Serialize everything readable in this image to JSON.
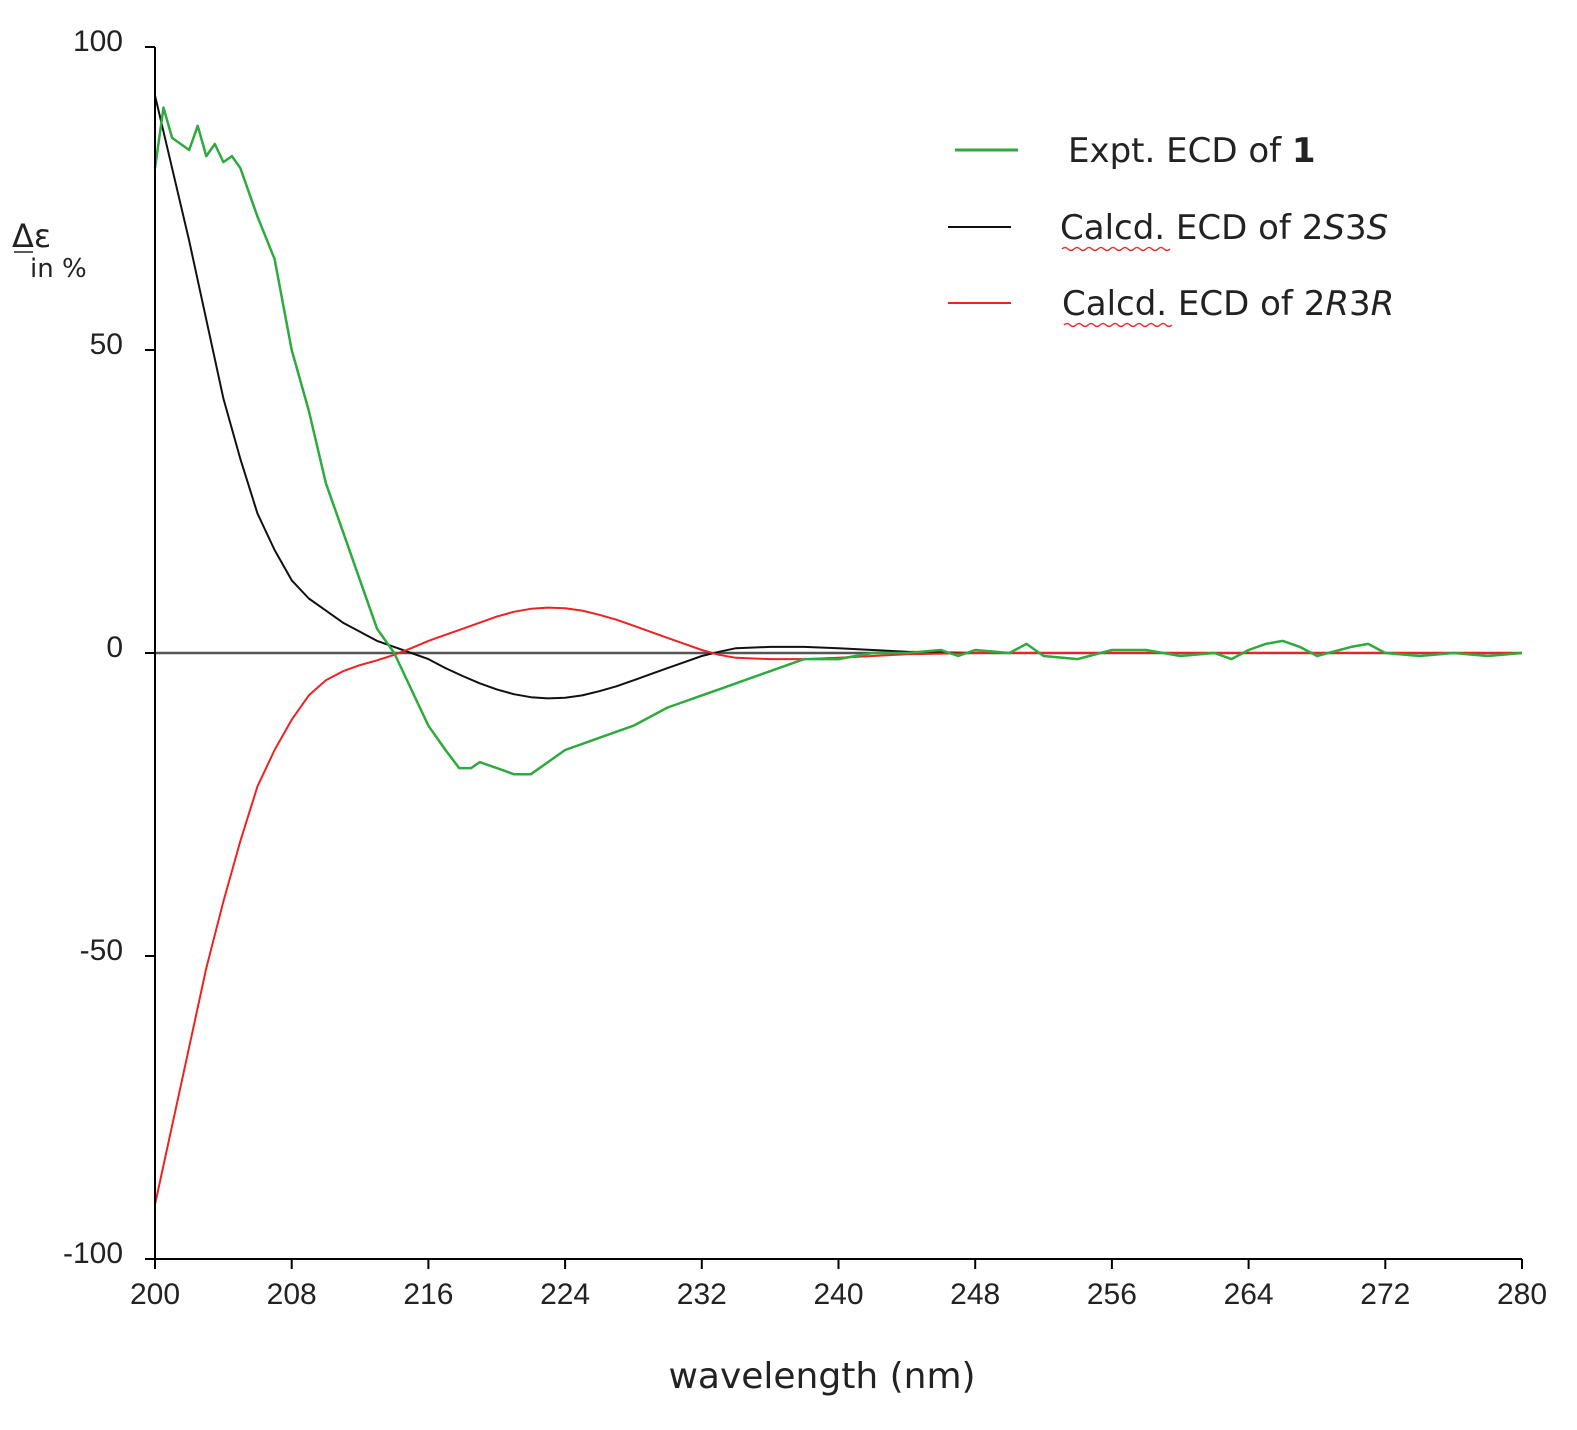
{
  "chart_data": {
    "type": "line",
    "title": "",
    "xlabel": "wavelength (nm)",
    "ylabel_main": "Δε",
    "ylabel_sub": "in %",
    "xlim": [
      200,
      280
    ],
    "ylim": [
      -100,
      100
    ],
    "x_ticks": [
      200,
      208,
      216,
      224,
      232,
      240,
      248,
      256,
      264,
      272,
      280
    ],
    "y_ticks": [
      100,
      50,
      0,
      -50,
      -100
    ],
    "y_tick_labels": [
      "100",
      "50",
      "0",
      "-50",
      "-100"
    ],
    "legend_position": "top-right",
    "series": [
      {
        "name": "Expt. ECD of 1",
        "label_prefix": "Expt. ECD of ",
        "label_bold": "1",
        "color": "#2eaa3e",
        "x": [
          200,
          200.5,
          201,
          202,
          202.5,
          203,
          203.5,
          204,
          204.5,
          205,
          206,
          207,
          208,
          209,
          210,
          211,
          212,
          213,
          214,
          215,
          216,
          217,
          217.8,
          218.5,
          219,
          220,
          221,
          222,
          223,
          224,
          225,
          226,
          228,
          230,
          231,
          232,
          233,
          234,
          236,
          238,
          240,
          241,
          242,
          244,
          246,
          247,
          248,
          250,
          251,
          252,
          254,
          256,
          258,
          260,
          262,
          263,
          264,
          265,
          266,
          267,
          268,
          270,
          271,
          272,
          274,
          276,
          278,
          280
        ],
        "y": [
          80,
          90,
          85,
          83,
          87,
          82,
          84,
          81,
          82,
          80,
          72,
          65,
          50,
          40,
          28,
          20,
          12,
          4,
          0,
          -6,
          -12,
          -16,
          -19,
          -19,
          -18,
          -19,
          -20,
          -20,
          -18,
          -16,
          -15,
          -14,
          -12,
          -9,
          -8,
          -7,
          -6,
          -5,
          -3,
          -1,
          -1,
          -0.5,
          0,
          0,
          0.5,
          -0.5,
          0.5,
          0,
          1.5,
          -0.5,
          -1,
          0.5,
          0.5,
          -0.5,
          0,
          -1,
          0.5,
          1.5,
          2,
          1,
          -0.5,
          1,
          1.5,
          0,
          -0.5,
          0,
          -0.5,
          0
        ]
      },
      {
        "name": "Calcd. ECD of 2S3S",
        "label_prefix": "Calcd. ECD of 2",
        "label_italic_1": "S",
        "label_mid": "3",
        "label_italic_2": "S",
        "color": "#111111",
        "x": [
          200,
          201,
          202,
          203,
          204,
          205,
          206,
          207,
          208,
          209,
          210,
          211,
          212,
          213,
          214,
          215,
          216,
          217,
          218,
          219,
          220,
          221,
          222,
          223,
          224,
          225,
          226,
          227,
          228,
          229,
          230,
          231,
          232,
          233,
          234,
          236,
          238,
          240,
          242,
          244,
          248,
          256,
          264,
          272,
          280
        ],
        "y": [
          92,
          80,
          68,
          55,
          42,
          32,
          23,
          17,
          12,
          9,
          7,
          5,
          3.5,
          2,
          1,
          0,
          -1,
          -2.5,
          -3.8,
          -5,
          -6,
          -6.8,
          -7.3,
          -7.5,
          -7.4,
          -7,
          -6.3,
          -5.5,
          -4.5,
          -3.5,
          -2.5,
          -1.5,
          -0.5,
          0.2,
          0.8,
          1,
          1,
          0.8,
          0.5,
          0.2,
          0,
          0,
          0,
          0,
          0
        ]
      },
      {
        "name": "Calcd. ECD of 2R3R",
        "label_prefix": "Calcd. ECD of 2",
        "label_italic_1": "R",
        "label_mid": "3",
        "label_italic_2": "R",
        "color": "#ee2222",
        "x": [
          200,
          201,
          202,
          203,
          204,
          205,
          206,
          207,
          208,
          209,
          210,
          211,
          212,
          213,
          214,
          215,
          216,
          217,
          218,
          219,
          220,
          221,
          222,
          223,
          224,
          225,
          226,
          227,
          228,
          229,
          230,
          231,
          232,
          233,
          234,
          236,
          238,
          240,
          242,
          244,
          248,
          256,
          264,
          272,
          280
        ],
        "y": [
          -91,
          -78,
          -65,
          -52,
          -41,
          -31,
          -22,
          -16,
          -11,
          -7,
          -4.5,
          -3,
          -2,
          -1.2,
          -0.3,
          0.8,
          2,
          3,
          4,
          5,
          6,
          6.8,
          7.3,
          7.5,
          7.4,
          7,
          6.3,
          5.5,
          4.5,
          3.5,
          2.5,
          1.5,
          0.5,
          -0.3,
          -0.8,
          -1,
          -1,
          -0.8,
          -0.5,
          -0.2,
          0,
          0,
          0,
          0,
          0
        ]
      }
    ]
  }
}
